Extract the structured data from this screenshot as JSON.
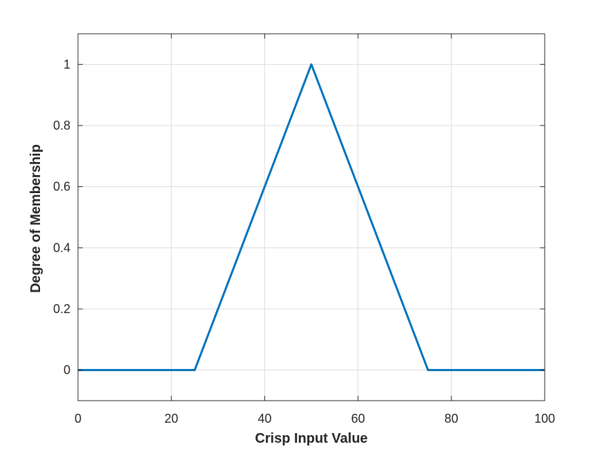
{
  "chart_data": {
    "type": "line",
    "title": "",
    "xlabel": "Crisp Input Value",
    "ylabel": "Degree of Membership",
    "xlim": [
      0,
      100
    ],
    "ylim": [
      -0.1,
      1.1
    ],
    "xticks": [
      0,
      20,
      40,
      60,
      80,
      100
    ],
    "xtick_labels": [
      "0",
      "20",
      "40",
      "60",
      "80",
      "100"
    ],
    "yticks": [
      0,
      0.2,
      0.4,
      0.6,
      0.8,
      1
    ],
    "ytick_labels": [
      "0",
      "0.2",
      "0.4",
      "0.6",
      "0.8",
      "1"
    ],
    "grid": true,
    "legend": "none",
    "series": [
      {
        "color": "#0072bd",
        "x": [
          0,
          25,
          50,
          75,
          100
        ],
        "y": [
          0,
          0,
          1,
          0,
          0
        ]
      }
    ]
  }
}
